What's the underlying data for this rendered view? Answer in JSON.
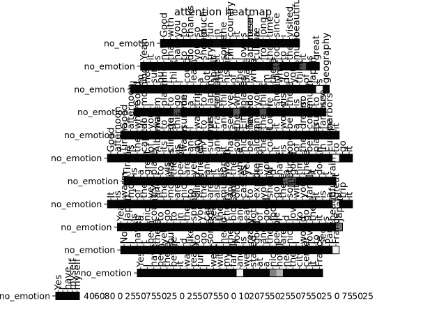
{
  "chart_data": {
    "type": "heatmap",
    "title": "attention heatmap",
    "xlabel": "",
    "ylabel": "",
    "grid": false,
    "colormap": {
      "low": "#000000",
      "high": "#ffffff"
    },
    "rows": [
      {
        "label": "no_emotion",
        "tokens": [
          "Good",
          "with",
          "you",
          "too",
          "thanks",
          "so",
          "much",
          "fun",
          "in",
          "the",
          "country",
          "it",
          "s",
          "been",
          "a",
          "long",
          "time",
          "since",
          "i",
          "visited",
          "beautiful"
        ],
        "x_ticks": [],
        "weights": [
          0.02,
          0.02,
          0.03,
          0.02,
          0.02,
          0.03,
          0.02,
          0.02,
          0.05,
          0.02,
          0.02,
          0.04,
          0.02,
          0.02,
          0.03,
          0.02,
          0.02,
          0.02,
          0.02,
          0.02,
          0.02
        ]
      },
      {
        "label": "no_emotion",
        "tokens": [
          "Yeah",
          "it",
          "s",
          "not",
          "that",
          "hard",
          "to",
          "do",
          "you",
          "should",
          "try",
          "it",
          "some",
          "time",
          "I",
          "love",
          "Japanese",
          "culture",
          "from",
          "the",
          "food",
          "to",
          "the",
          "music",
          "it",
          "s",
          "great"
        ],
        "x_ticks": [],
        "weights": [
          0.02,
          0.02,
          0.02,
          0.03,
          0.02,
          0.02,
          0.02,
          0.03,
          0.02,
          0.02,
          0.02,
          0.05,
          0.02,
          0.02,
          0.02,
          0.02,
          0.02,
          0.02,
          0.03,
          0.02,
          0.3,
          0.02,
          0.02,
          0.02,
          0.3,
          0.02,
          0.02
        ]
      },
      {
        "label": "no_emotion",
        "tokens": [
          "I",
          "m",
          "not",
          "sure",
          "but",
          "I",
          "think",
          "I",
          "could",
          "learn",
          "a",
          "lot",
          "about",
          "the",
          "history",
          "of",
          "the",
          "place",
          "while",
          "I",
          "m",
          "there",
          "what",
          "do",
          "you",
          "think",
          "of",
          "Japan",
          "s",
          "geography"
        ],
        "x_ticks": [],
        "weights": [
          0.02,
          0.02,
          0.02,
          0.02,
          0.02,
          0.03,
          0.02,
          0.02,
          0.02,
          0.02,
          0.02,
          0.02,
          0.02,
          0.02,
          0.02,
          0.02,
          0.02,
          0.02,
          0.02,
          0.03,
          0.02,
          0.02,
          0.02,
          0.02,
          0.02,
          0.02,
          0.02,
          0.02,
          0.95,
          0.02
        ]
      },
      {
        "label": "no_emotion",
        "tokens": [
          "Good",
          "morning",
          "I",
          "m",
          "planning",
          "to",
          "go",
          "on",
          "a",
          "trip",
          "to",
          "Japan",
          "sometime",
          "this",
          "year",
          "what",
          "places",
          "do",
          "you",
          "think",
          "I",
          "should",
          "visit",
          "there",
          "is",
          "so",
          "much",
          "to",
          "see"
        ],
        "x_ticks": [],
        "weights": [
          0.02,
          0.02,
          0.02,
          0.02,
          0.02,
          0.02,
          0.3,
          0.02,
          0.02,
          0.02,
          0.02,
          0.02,
          0.02,
          0.02,
          0.02,
          0.35,
          0.02,
          0.02,
          0.02,
          0.3,
          0.02,
          0.02,
          0.02,
          0.02,
          0.02,
          0.02,
          0.02,
          0.02,
          0.02
        ]
      },
      {
        "label": "no_emotion",
        "tokens": [
          "Good",
          "afternoon",
          "where",
          "do",
          "you",
          "want",
          "to",
          "go",
          "this",
          "summer",
          "I",
          "want",
          "to",
          "visit",
          "France",
          "and",
          "see",
          "the",
          "Eiffel",
          "Tower",
          "and",
          "the",
          "Louvre",
          "it",
          "would",
          "be",
          "a",
          "dream",
          "come",
          "true",
          "famous",
          "harbors",
          "it"
        ],
        "x_ticks": [],
        "weights": [
          0.02,
          0.02,
          0.02,
          0.02,
          0.02,
          0.02,
          0.02,
          0.02,
          0.02,
          0.02,
          0.02,
          0.02,
          0.02,
          0.02,
          0.02,
          0.02,
          0.02,
          0.02,
          0.02,
          0.02,
          0.02,
          0.02,
          0.02,
          0.02,
          0.02,
          0.02,
          0.02,
          0.02,
          0.02,
          0.02,
          0.02,
          0.02,
          0.02
        ]
      },
      {
        "label": "no_emotion",
        "tokens": [
          "Good",
          "afternoon",
          "Tirana",
          "is",
          "the",
          "capital",
          "of",
          "Albania",
          "its",
          "climate",
          "is",
          "warm",
          "and",
          "dry",
          "in",
          "summer",
          "and",
          "it",
          "has",
          "some",
          "nice",
          "beaches",
          "along",
          "the",
          "coast",
          "it",
          "is",
          "one",
          "of",
          "the",
          "best",
          "places",
          "in",
          "Europe",
          "to",
          "go",
          "it"
        ],
        "x_ticks": [],
        "weights": [
          0.02,
          0.02,
          0.02,
          0.02,
          0.02,
          0.02,
          0.02,
          0.02,
          0.02,
          0.02,
          0.02,
          0.02,
          0.02,
          0.02,
          0.02,
          0.02,
          0.02,
          0.02,
          0.02,
          0.02,
          0.02,
          0.02,
          0.02,
          0.02,
          0.02,
          0.02,
          0.02,
          0.02,
          0.02,
          0.02,
          0.02,
          0.02,
          0.02,
          0.02,
          0.95,
          0.02,
          0.02
        ]
      },
      {
        "label": "no_emotion",
        "tokens": [
          "Tirana",
          "is",
          "a",
          "great",
          "place",
          "to",
          "visit",
          "the",
          "people",
          "are",
          "very",
          "friendly",
          "and",
          "it",
          "is",
          "warm",
          "the",
          "whole",
          "year",
          "I",
          "think",
          "you",
          "d",
          "have",
          "a",
          "good",
          "time",
          "there",
          "it",
          "doesn",
          "t",
          "rain"
        ],
        "x_ticks": [],
        "weights": [
          0.02,
          0.02,
          0.02,
          0.02,
          0.02,
          0.02,
          0.02,
          0.02,
          0.02,
          0.02,
          0.02,
          0.02,
          0.02,
          0.02,
          0.02,
          0.02,
          0.02,
          0.02,
          0.02,
          0.02,
          0.02,
          0.02,
          0.02,
          0.02,
          0.35,
          0.3,
          0.02,
          0.02,
          0.02,
          0.02,
          0.02,
          0.02
        ]
      },
      {
        "label": "no_emotion",
        "tokens": [
          "It",
          "is",
          "warm",
          "most",
          "of",
          "the",
          "year",
          "and",
          "the",
          "mountains",
          "are",
          "nice",
          "to",
          "climb",
          "there",
          "are",
          "also",
          "museums",
          "and",
          "old",
          "castles",
          "to",
          "explore",
          "you",
          "should",
          "go",
          "there",
          "sometime",
          "with",
          "your",
          "family",
          "it",
          "is",
          "a",
          "great",
          "trip",
          "it"
        ],
        "x_ticks": [],
        "weights": [
          0.02,
          0.02,
          0.02,
          0.02,
          0.02,
          0.02,
          0.02,
          0.02,
          0.02,
          0.02,
          0.02,
          0.02,
          0.02,
          0.02,
          0.02,
          0.02,
          0.02,
          0.02,
          0.02,
          0.02,
          0.02,
          0.02,
          0.02,
          0.02,
          0.02,
          0.02,
          0.02,
          0.02,
          0.02,
          0.02,
          0.02,
          0.02,
          0.02,
          0.02,
          0.95,
          0.02,
          0.02
        ]
      },
      {
        "label": "no_emotion",
        "tokens": [
          "Yeah",
          "Japan",
          "is",
          "a",
          "nice",
          "country",
          "to",
          "go",
          "to",
          "in",
          "the",
          "spring",
          "you",
          "can",
          "see",
          "the",
          "cherry",
          "blossoms",
          "and",
          "eat",
          "lots",
          "of",
          "good",
          "food",
          "I",
          "d",
          "love",
          "to",
          "go",
          "there",
          "it",
          "s",
          "beautiful",
          "Japan"
        ],
        "x_ticks": [],
        "weights": [
          0.02,
          0.02,
          0.02,
          0.02,
          0.02,
          0.02,
          0.02,
          0.02,
          0.02,
          0.02,
          0.02,
          0.02,
          0.02,
          0.02,
          0.02,
          0.02,
          0.02,
          0.02,
          0.02,
          0.02,
          0.02,
          0.02,
          0.02,
          0.02,
          0.02,
          0.02,
          0.02,
          0.02,
          0.02,
          0.02,
          0.02,
          0.02,
          0.02,
          0.45
        ]
      },
      {
        "label": "no_emotion",
        "tokens": [
          "No",
          "I",
          "haven",
          "t",
          "been",
          "there",
          "yet",
          "but",
          "I",
          "d",
          "like",
          "to",
          "go",
          "someday",
          "I",
          "heard",
          "the",
          "food",
          "is",
          "really",
          "good",
          "and",
          "the",
          "people",
          "are",
          "nice",
          "I",
          "would",
          "love",
          "to",
          "see",
          "Paris",
          "France"
        ],
        "x_ticks": [],
        "weights": [
          0.02,
          0.02,
          0.02,
          0.02,
          0.02,
          0.02,
          0.02,
          0.02,
          0.02,
          0.02,
          0.02,
          0.02,
          0.02,
          0.02,
          0.02,
          0.02,
          0.02,
          0.02,
          0.02,
          0.02,
          0.02,
          0.02,
          0.02,
          0.02,
          0.02,
          0.02,
          0.02,
          0.02,
          0.02,
          0.02,
          0.02,
          0.02,
          0.95
        ]
      },
      {
        "label": "no_emotion",
        "tokens": [
          "Yes",
          "I",
          "have",
          "been",
          "there",
          "before",
          "it",
          "was",
          "really",
          "fun",
          "I",
          "went",
          "with",
          "my",
          "family",
          "and",
          "we",
          "stayed",
          "at",
          "a",
          "nice",
          "hotel",
          "near",
          "the",
          "city",
          "center",
          "it",
          "France"
        ],
        "x_ticks": [],
        "weights": [
          0.02,
          0.02,
          0.02,
          0.02,
          0.02,
          0.02,
          0.02,
          0.02,
          0.02,
          0.02,
          0.02,
          0.02,
          0.02,
          0.02,
          0.02,
          0.95,
          0.02,
          0.02,
          0.02,
          0.02,
          0.5,
          0.7,
          0.02,
          0.02,
          0.02,
          0.02,
          0.02,
          0.02
        ]
      },
      {
        "label": "no_emotion",
        "tokens": [
          "Yes",
          "I",
          "have",
          "myself",
          "myself"
        ],
        "x_ticks": [
          "40",
          "60",
          "80",
          "0",
          "25",
          "50",
          "75",
          "50",
          "25",
          "0",
          "25",
          "50",
          "75",
          "50",
          "0",
          "10",
          "20",
          "75",
          "50",
          "25",
          "50",
          "75",
          "50",
          "25",
          "0",
          "75",
          "50",
          "25"
        ],
        "weights": [
          0.02,
          0.02,
          0.02,
          0.02,
          0.02
        ]
      }
    ]
  }
}
